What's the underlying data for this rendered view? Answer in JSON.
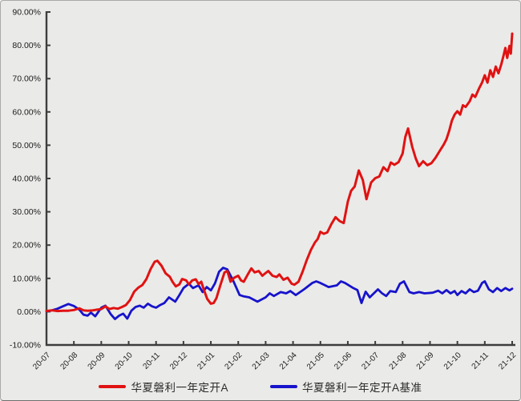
{
  "panel": {
    "background": "#eaeae8",
    "axis_color": "#3d3d3d",
    "label_color": "#1c1c1c"
  },
  "chart_data": {
    "type": "line",
    "title": "",
    "xlabel": "",
    "ylabel": "",
    "grid": false,
    "legend_position": "bottom-center",
    "ylim": [
      -10,
      90
    ],
    "y_ticks": [
      90,
      80,
      70,
      60,
      50,
      40,
      30,
      20,
      10,
      0,
      -10
    ],
    "y_tick_labels": [
      "90.00%",
      "80.00%",
      "70.00%",
      "60.00%",
      "50.00%",
      "40.00%",
      "30.00%",
      "20.00%",
      "10.00%",
      "0.00%",
      "-10.00%"
    ],
    "x_tick_labels": [
      "20-07",
      "20-08",
      "20-09",
      "20-10",
      "20-11",
      "20-12",
      "21-01",
      "21-02",
      "21-03",
      "21-04",
      "21-05",
      "21-06",
      "21-07",
      "21-08",
      "21-09",
      "21-10",
      "21-11",
      "21-12"
    ],
    "x_unit": "month-index 0 = 20-07, 17 = 21-12",
    "series": [
      {
        "name": "华夏磐利一年定开A",
        "color": "#e01212",
        "width": 3,
        "points": [
          [
            0,
            0.2
          ],
          [
            0.2,
            0.4
          ],
          [
            0.4,
            0.2
          ],
          [
            0.6,
            0.3
          ],
          [
            0.8,
            0.3
          ],
          [
            1.0,
            0.5
          ],
          [
            1.2,
            1.0
          ],
          [
            1.35,
            0.4
          ],
          [
            1.5,
            0.3
          ],
          [
            1.7,
            0.4
          ],
          [
            1.85,
            0.6
          ],
          [
            2.0,
            0.8
          ],
          [
            2.15,
            1.6
          ],
          [
            2.3,
            0.8
          ],
          [
            2.45,
            1.1
          ],
          [
            2.6,
            0.9
          ],
          [
            2.75,
            1.4
          ],
          [
            2.9,
            2.0
          ],
          [
            3.05,
            3.5
          ],
          [
            3.2,
            6.0
          ],
          [
            3.35,
            7.2
          ],
          [
            3.5,
            8.0
          ],
          [
            3.65,
            9.8
          ],
          [
            3.8,
            12.8
          ],
          [
            3.95,
            15.0
          ],
          [
            4.05,
            15.3
          ],
          [
            4.2,
            13.8
          ],
          [
            4.35,
            11.5
          ],
          [
            4.5,
            10.5
          ],
          [
            4.6,
            9.0
          ],
          [
            4.72,
            7.6
          ],
          [
            4.85,
            8.2
          ],
          [
            4.95,
            9.8
          ],
          [
            5.1,
            9.4
          ],
          [
            5.2,
            8.2
          ],
          [
            5.32,
            9.4
          ],
          [
            5.45,
            9.7
          ],
          [
            5.55,
            8.3
          ],
          [
            5.65,
            9.0
          ],
          [
            5.75,
            6.5
          ],
          [
            5.87,
            3.8
          ],
          [
            6.0,
            2.4
          ],
          [
            6.1,
            2.6
          ],
          [
            6.2,
            4.0
          ],
          [
            6.35,
            8.0
          ],
          [
            6.5,
            11.8
          ],
          [
            6.6,
            12.2
          ],
          [
            6.72,
            9.0
          ],
          [
            6.85,
            10.2
          ],
          [
            7.0,
            10.8
          ],
          [
            7.1,
            9.4
          ],
          [
            7.2,
            9.0
          ],
          [
            7.35,
            11.2
          ],
          [
            7.48,
            13.0
          ],
          [
            7.6,
            11.8
          ],
          [
            7.75,
            12.2
          ],
          [
            7.88,
            10.8
          ],
          [
            8.0,
            11.6
          ],
          [
            8.1,
            12.2
          ],
          [
            8.25,
            10.8
          ],
          [
            8.4,
            10.4
          ],
          [
            8.5,
            11.2
          ],
          [
            8.65,
            9.6
          ],
          [
            8.8,
            10.2
          ],
          [
            8.95,
            8.4
          ],
          [
            9.05,
            8.1
          ],
          [
            9.2,
            9.0
          ],
          [
            9.35,
            12.0
          ],
          [
            9.5,
            15.5
          ],
          [
            9.65,
            18.5
          ],
          [
            9.8,
            20.8
          ],
          [
            9.9,
            21.8
          ],
          [
            10.0,
            24.0
          ],
          [
            10.12,
            23.4
          ],
          [
            10.25,
            23.8
          ],
          [
            10.4,
            26.3
          ],
          [
            10.55,
            28.4
          ],
          [
            10.7,
            27.2
          ],
          [
            10.85,
            26.6
          ],
          [
            11.0,
            33.0
          ],
          [
            11.12,
            36.3
          ],
          [
            11.25,
            37.6
          ],
          [
            11.4,
            42.4
          ],
          [
            11.55,
            39.5
          ],
          [
            11.68,
            33.8
          ],
          [
            11.85,
            38.8
          ],
          [
            12.0,
            40.1
          ],
          [
            12.15,
            40.6
          ],
          [
            12.3,
            43.4
          ],
          [
            12.45,
            42.2
          ],
          [
            12.57,
            44.8
          ],
          [
            12.7,
            44.1
          ],
          [
            12.85,
            44.9
          ],
          [
            13.0,
            47.5
          ],
          [
            13.1,
            52.5
          ],
          [
            13.2,
            55.0
          ],
          [
            13.35,
            49.5
          ],
          [
            13.48,
            46.0
          ],
          [
            13.6,
            43.7
          ],
          [
            13.75,
            45.2
          ],
          [
            13.9,
            44.0
          ],
          [
            14.05,
            44.6
          ],
          [
            14.2,
            46.2
          ],
          [
            14.35,
            48.2
          ],
          [
            14.5,
            50.2
          ],
          [
            14.6,
            51.8
          ],
          [
            14.7,
            54.3
          ],
          [
            14.8,
            57.4
          ],
          [
            14.9,
            59.2
          ],
          [
            15.0,
            60.2
          ],
          [
            15.1,
            59.2
          ],
          [
            15.2,
            62.0
          ],
          [
            15.3,
            61.5
          ],
          [
            15.45,
            63.2
          ],
          [
            15.55,
            65.2
          ],
          [
            15.65,
            64.5
          ],
          [
            15.8,
            67.2
          ],
          [
            15.9,
            68.8
          ],
          [
            16.0,
            71.0
          ],
          [
            16.1,
            68.8
          ],
          [
            16.2,
            72.5
          ],
          [
            16.3,
            70.5
          ],
          [
            16.4,
            73.6
          ],
          [
            16.5,
            71.6
          ],
          [
            16.6,
            74.2
          ],
          [
            16.68,
            76.8
          ],
          [
            16.75,
            79.2
          ],
          [
            16.82,
            76.2
          ],
          [
            16.9,
            79.8
          ],
          [
            16.95,
            77.5
          ],
          [
            17.0,
            83.5
          ]
        ]
      },
      {
        "name": "华夏磐利一年定开A基准",
        "color": "#1713cb",
        "width": 2.8,
        "points": [
          [
            0,
            0.1
          ],
          [
            0.2,
            0.4
          ],
          [
            0.4,
            0.9
          ],
          [
            0.6,
            1.6
          ],
          [
            0.8,
            2.3
          ],
          [
            1.0,
            1.7
          ],
          [
            1.2,
            0.6
          ],
          [
            1.35,
            -0.9
          ],
          [
            1.5,
            -1.2
          ],
          [
            1.62,
            -0.3
          ],
          [
            1.78,
            -1.4
          ],
          [
            2.0,
            1.2
          ],
          [
            2.15,
            1.8
          ],
          [
            2.35,
            -0.8
          ],
          [
            2.5,
            -2.2
          ],
          [
            2.65,
            -1.2
          ],
          [
            2.8,
            -0.6
          ],
          [
            2.95,
            -2.1
          ],
          [
            3.1,
            0.3
          ],
          [
            3.25,
            1.4
          ],
          [
            3.4,
            1.8
          ],
          [
            3.55,
            1.2
          ],
          [
            3.7,
            2.4
          ],
          [
            3.85,
            1.6
          ],
          [
            4.0,
            1.2
          ],
          [
            4.15,
            2.0
          ],
          [
            4.3,
            2.6
          ],
          [
            4.47,
            4.3
          ],
          [
            4.7,
            3.0
          ],
          [
            4.85,
            5.0
          ],
          [
            5.0,
            7.1
          ],
          [
            5.2,
            8.4
          ],
          [
            5.35,
            7.1
          ],
          [
            5.55,
            7.9
          ],
          [
            5.7,
            5.9
          ],
          [
            5.85,
            7.4
          ],
          [
            6.0,
            6.4
          ],
          [
            6.15,
            8.5
          ],
          [
            6.3,
            12.0
          ],
          [
            6.45,
            13.2
          ],
          [
            6.6,
            12.7
          ],
          [
            6.8,
            9.6
          ],
          [
            7.05,
            5.0
          ],
          [
            7.2,
            4.6
          ],
          [
            7.4,
            4.3
          ],
          [
            7.7,
            3.0
          ],
          [
            8.0,
            4.3
          ],
          [
            8.15,
            5.5
          ],
          [
            8.3,
            4.7
          ],
          [
            8.55,
            5.9
          ],
          [
            8.75,
            5.5
          ],
          [
            8.9,
            6.2
          ],
          [
            9.1,
            5.0
          ],
          [
            9.4,
            6.7
          ],
          [
            9.7,
            8.6
          ],
          [
            9.85,
            9.1
          ],
          [
            10.0,
            8.6
          ],
          [
            10.3,
            7.4
          ],
          [
            10.6,
            7.9
          ],
          [
            10.75,
            9.1
          ],
          [
            10.9,
            8.6
          ],
          [
            11.2,
            7.1
          ],
          [
            11.35,
            6.5
          ],
          [
            11.5,
            2.6
          ],
          [
            11.65,
            6.0
          ],
          [
            11.8,
            4.3
          ],
          [
            12.1,
            6.7
          ],
          [
            12.25,
            5.5
          ],
          [
            12.4,
            4.7
          ],
          [
            12.55,
            6.2
          ],
          [
            12.75,
            5.9
          ],
          [
            12.9,
            8.4
          ],
          [
            13.05,
            9.1
          ],
          [
            13.25,
            5.9
          ],
          [
            13.4,
            5.5
          ],
          [
            13.6,
            5.9
          ],
          [
            13.8,
            5.5
          ],
          [
            14.1,
            5.7
          ],
          [
            14.3,
            6.3
          ],
          [
            14.45,
            5.5
          ],
          [
            14.6,
            6.5
          ],
          [
            14.75,
            5.5
          ],
          [
            14.9,
            6.2
          ],
          [
            15.0,
            5.0
          ],
          [
            15.15,
            6.2
          ],
          [
            15.3,
            5.5
          ],
          [
            15.45,
            6.7
          ],
          [
            15.6,
            5.9
          ],
          [
            15.75,
            6.3
          ],
          [
            15.9,
            8.6
          ],
          [
            16.0,
            9.1
          ],
          [
            16.15,
            6.7
          ],
          [
            16.3,
            5.9
          ],
          [
            16.45,
            7.1
          ],
          [
            16.6,
            6.2
          ],
          [
            16.75,
            7.1
          ],
          [
            16.9,
            6.4
          ],
          [
            17.0,
            6.9
          ]
        ]
      }
    ]
  }
}
